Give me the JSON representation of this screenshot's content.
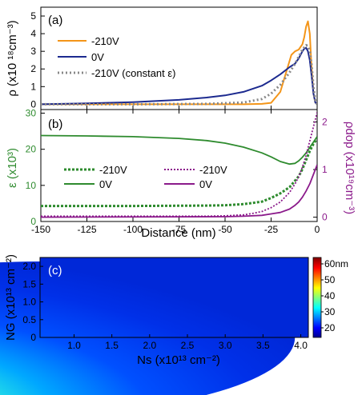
{
  "chart_data": [
    {
      "panel": "(a)",
      "type": "line",
      "xlim": [
        -150,
        0
      ],
      "ylim": [
        -0.3,
        5.5
      ],
      "yticks": [
        "0",
        "1",
        "2",
        "3",
        "4",
        "5"
      ],
      "ylabel": "ρ (x10 ¹⁸cm⁻³)",
      "series": [
        {
          "name": "-210V",
          "color": "#f39519",
          "style": "solid",
          "x": [
            -150,
            -125,
            -100,
            -75,
            -50,
            -40,
            -30,
            -25,
            -20,
            -16,
            -14,
            -12,
            -10,
            -8,
            -7,
            -6,
            -5,
            -4,
            -3,
            -2,
            -1,
            0
          ],
          "y": [
            0,
            0,
            0,
            0,
            0,
            0,
            0.02,
            0.08,
            0.7,
            2.1,
            2.8,
            3.0,
            3.1,
            3.4,
            3.8,
            4.4,
            4.7,
            4.0,
            2.0,
            0.6,
            0.1,
            0
          ]
        },
        {
          "name": "0V",
          "color": "#1c2a8f",
          "style": "solid",
          "x": [
            -150,
            -125,
            -100,
            -75,
            -60,
            -50,
            -40,
            -30,
            -25,
            -20,
            -15,
            -12,
            -10,
            -8,
            -7,
            -6,
            -5,
            -4,
            -3,
            -2,
            -1,
            0
          ],
          "y": [
            0,
            0.05,
            0.12,
            0.25,
            0.38,
            0.5,
            0.7,
            1.05,
            1.35,
            1.7,
            2.1,
            2.3,
            2.6,
            3.0,
            3.15,
            3.2,
            3.0,
            2.5,
            1.6,
            0.6,
            0.1,
            0
          ]
        },
        {
          "name": "-210V (constant ε)",
          "color": "#888888",
          "style": "dotted",
          "x": [
            -150,
            -100,
            -60,
            -40,
            -30,
            -25,
            -20,
            -15,
            -12,
            -10,
            -8,
            -6,
            -5,
            -4,
            -3,
            -2,
            -1,
            0
          ],
          "y": [
            0,
            0,
            0.02,
            0.1,
            0.3,
            0.6,
            1.1,
            1.8,
            2.3,
            2.7,
            3.1,
            3.35,
            3.3,
            3.0,
            2.2,
            1.0,
            0.2,
            0
          ]
        }
      ]
    },
    {
      "panel": "(b)",
      "type": "line",
      "xlim": [
        -150,
        0
      ],
      "ylim_left": [
        0,
        31
      ],
      "ylim_right": [
        -0.09,
        2.26
      ],
      "yticks_left": [
        "0",
        "10",
        "20",
        "30"
      ],
      "yticks_right": [
        "0",
        "1",
        "2"
      ],
      "ylabel_left": "ε (x10³)",
      "ylabel_right": "ρdop (x10¹⁹cm⁻³)",
      "xticks": [
        "-150",
        "-125",
        "-100",
        "-75",
        "-50",
        "-25",
        "0"
      ],
      "xlabel": "Distance (nm)",
      "legend_label_210": "-210V",
      "legend_label_0": "0V",
      "series": [
        {
          "name": "-210V",
          "axis": "left",
          "color": "#2e8b2e",
          "style": "dotted",
          "x": [
            -150,
            -100,
            -60,
            -50,
            -40,
            -30,
            -25,
            -20,
            -15,
            -10,
            -8,
            -6,
            -4,
            -2,
            0
          ],
          "y": [
            4.3,
            4.3,
            4.4,
            4.5,
            4.8,
            5.5,
            6.5,
            7.8,
            9.5,
            12.5,
            14.5,
            17,
            19.5,
            21.5,
            23
          ]
        },
        {
          "name": "0V",
          "axis": "left",
          "color": "#2e8b2e",
          "style": "solid",
          "x": [
            -150,
            -125,
            -100,
            -75,
            -60,
            -50,
            -40,
            -30,
            -25,
            -20,
            -15,
            -12,
            -10,
            -8,
            -6,
            -4,
            -2,
            0
          ],
          "y": [
            23.8,
            23.7,
            23.5,
            23.0,
            22.4,
            21.7,
            20.6,
            19.0,
            17.9,
            16.6,
            15.9,
            16.1,
            16.8,
            17.8,
            19.0,
            20.5,
            22.0,
            23.5
          ]
        },
        {
          "name": "-210V",
          "axis": "right",
          "color": "#8b1a8b",
          "style": "dotted",
          "x": [
            -150,
            -60,
            -50,
            -40,
            -35,
            -30,
            -25,
            -20,
            -15,
            -12,
            -10,
            -8,
            -6,
            -4,
            -2,
            0
          ],
          "y": [
            0.02,
            0.02,
            0.03,
            0.05,
            0.08,
            0.12,
            0.2,
            0.32,
            0.52,
            0.7,
            0.85,
            1.05,
            1.3,
            1.6,
            1.9,
            2.2
          ]
        },
        {
          "name": "0V",
          "axis": "right",
          "color": "#8b1a8b",
          "style": "solid",
          "x": [
            -150,
            -50,
            -40,
            -30,
            -25,
            -20,
            -15,
            -12,
            -10,
            -8,
            -6,
            -4,
            -2,
            0
          ],
          "y": [
            0,
            0.01,
            0.02,
            0.04,
            0.07,
            0.1,
            0.17,
            0.25,
            0.32,
            0.42,
            0.55,
            0.7,
            0.9,
            1.1
          ]
        }
      ]
    },
    {
      "panel": "(c)",
      "type": "heatmap",
      "xlim": [
        0.55,
        4.1
      ],
      "ylim": [
        0,
        2.25
      ],
      "xticks": [
        "1.0",
        "1.5",
        "2.0",
        "2.5",
        "3.0",
        "3.5",
        "4.0"
      ],
      "yticks": [
        "0",
        "0.5",
        "1.0",
        "1.5",
        "2.0"
      ],
      "xlabel": "Ns (x10¹³ cm⁻²)",
      "ylabel": "NG (x10¹³ cm⁻²)",
      "colorbar_label_top": "60nm",
      "colorbar_ticks": [
        "20",
        "30",
        "40",
        "50",
        "60nm"
      ],
      "colorbar_range": [
        14,
        64
      ],
      "colors": [
        "#00008f",
        "#0000ff",
        "#00ffff",
        "#ffff00",
        "#ff0000",
        "#800000"
      ]
    }
  ]
}
